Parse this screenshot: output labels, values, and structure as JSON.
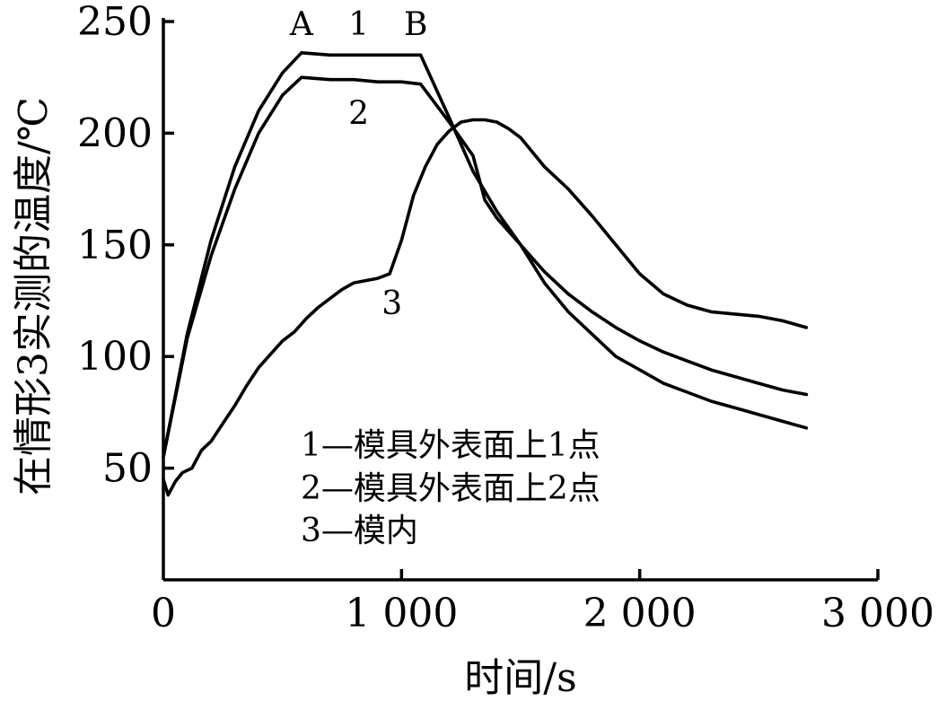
{
  "chart_data": {
    "type": "line",
    "title": "",
    "xlabel": "时间/s",
    "ylabel": "在情形3实测的温度/℃",
    "xlim": [
      0,
      3000
    ],
    "ylim": [
      0,
      250
    ],
    "x_ticks": [
      0,
      1000,
      2000,
      3000
    ],
    "x_tick_labels": [
      "0",
      "1 000",
      "2 000",
      "3 000"
    ],
    "y_ticks": [
      50,
      100,
      150,
      200,
      250
    ],
    "y_tick_labels": [
      "50",
      "100",
      "150",
      "200",
      "250"
    ],
    "grid": false,
    "legend_position": "lower-center",
    "legend": [
      "1—模具外表面上1点",
      "2—模具外表面上2点",
      "3—模内"
    ],
    "annotations": [
      {
        "text": "A",
        "x": 580,
        "y": 244
      },
      {
        "text": "1",
        "x": 820,
        "y": 244
      },
      {
        "text": "B",
        "x": 1060,
        "y": 244
      },
      {
        "text": "2",
        "x": 820,
        "y": 204
      },
      {
        "text": "3",
        "x": 960,
        "y": 119
      }
    ],
    "series": [
      {
        "name": "1",
        "x": [
          0,
          100,
          200,
          300,
          400,
          500,
          580,
          700,
          800,
          900,
          1000,
          1080,
          1200,
          1300,
          1400,
          1500,
          1600,
          1700,
          1800,
          1900,
          2000,
          2100,
          2200,
          2300,
          2400,
          2500,
          2600,
          2700
        ],
        "y": [
          55,
          110,
          152,
          185,
          210,
          227,
          236,
          235,
          235,
          235,
          235,
          235,
          207,
          183,
          165,
          150,
          138,
          128,
          120,
          113,
          107,
          102,
          98,
          94,
          91,
          88,
          85,
          83
        ]
      },
      {
        "name": "2",
        "x": [
          0,
          100,
          200,
          300,
          400,
          500,
          580,
          700,
          800,
          900,
          1000,
          1080,
          1200,
          1300,
          1350,
          1400,
          1500,
          1600,
          1700,
          1800,
          1900,
          2000,
          2100,
          2200,
          2300,
          2400,
          2500,
          2600,
          2700
        ],
        "y": [
          55,
          108,
          145,
          175,
          200,
          217,
          225,
          224,
          224,
          223,
          223,
          222,
          205,
          190,
          170,
          162,
          150,
          133,
          120,
          110,
          100,
          94,
          88,
          84,
          80,
          77,
          74,
          71,
          68
        ]
      },
      {
        "name": "3",
        "x": [
          0,
          20,
          50,
          80,
          120,
          160,
          200,
          250,
          300,
          350,
          400,
          450,
          500,
          550,
          600,
          650,
          700,
          750,
          800,
          850,
          900,
          950,
          1000,
          1050,
          1100,
          1150,
          1200,
          1250,
          1300,
          1350,
          1400,
          1450,
          1500,
          1600,
          1700,
          1800,
          1900,
          2000,
          2100,
          2200,
          2300,
          2400,
          2500,
          2600,
          2700
        ],
        "y": [
          45,
          38,
          44,
          48,
          50,
          58,
          62,
          70,
          78,
          87,
          95,
          101,
          107,
          111,
          117,
          122,
          126,
          130,
          133,
          134,
          135,
          137,
          152,
          172,
          185,
          195,
          201,
          205,
          206,
          206,
          205,
          202,
          198,
          185,
          175,
          163,
          150,
          137,
          128,
          123,
          120,
          119,
          118,
          116,
          113
        ]
      }
    ]
  }
}
